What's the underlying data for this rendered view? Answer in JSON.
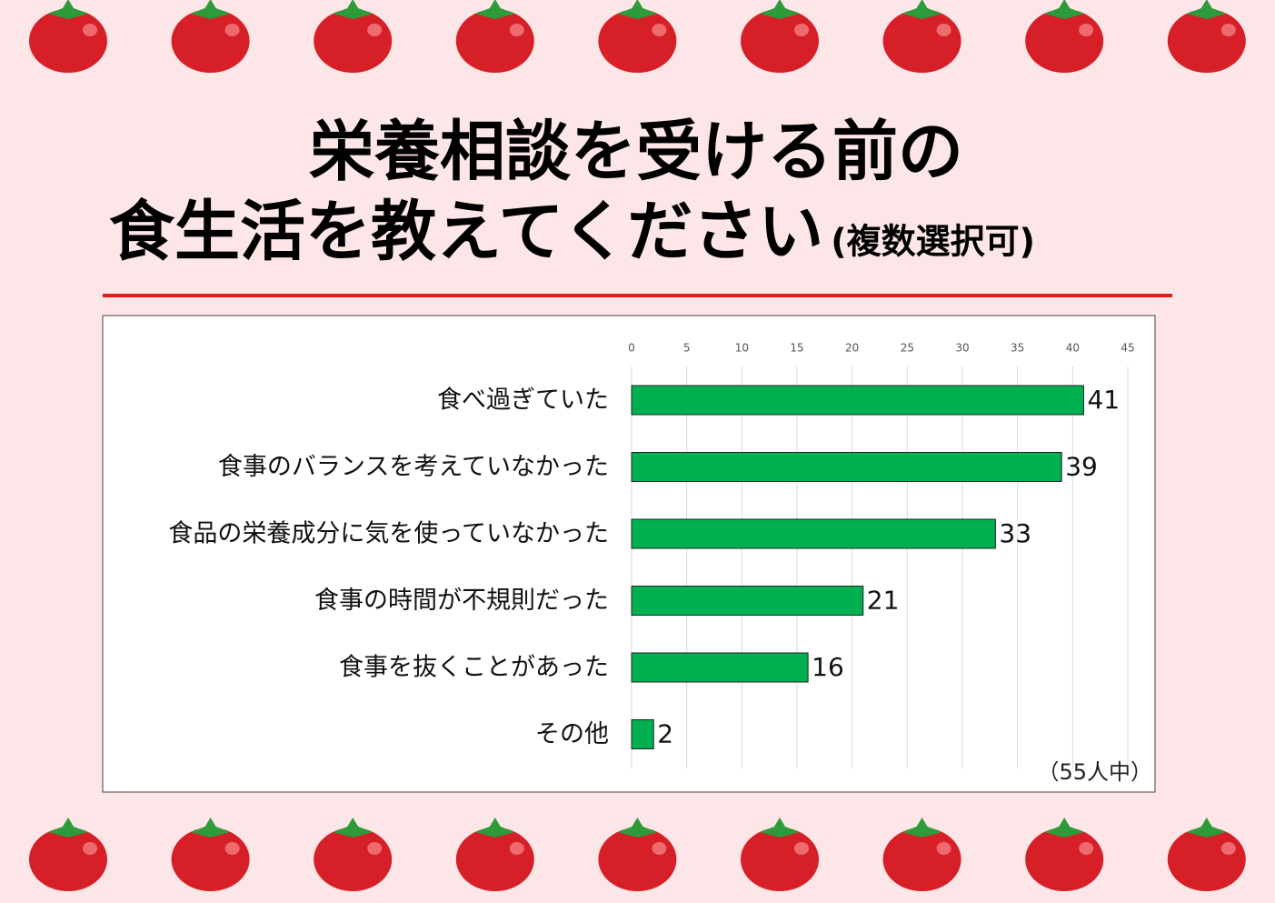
{
  "chart_data": {
    "type": "bar",
    "orientation": "horizontal",
    "title": [
      "栄養相談を受ける前の",
      "食生活を教えてください"
    ],
    "subtitle": "(複数選択可)",
    "note": "（55人中）",
    "categories": [
      "食べ過ぎていた",
      "食事のバランスを考えていなかった",
      "食品の栄養成分に気を使っていなかった",
      "食事の時間が不規則だった",
      "食事を抜くことがあった",
      "その他"
    ],
    "values": [
      41,
      39,
      33,
      21,
      16,
      2
    ],
    "color": "#00b050",
    "xlim": [
      0,
      45
    ],
    "xticks": [
      0,
      5,
      10,
      15,
      20,
      25,
      30,
      35,
      40,
      45
    ],
    "grid": true
  }
}
